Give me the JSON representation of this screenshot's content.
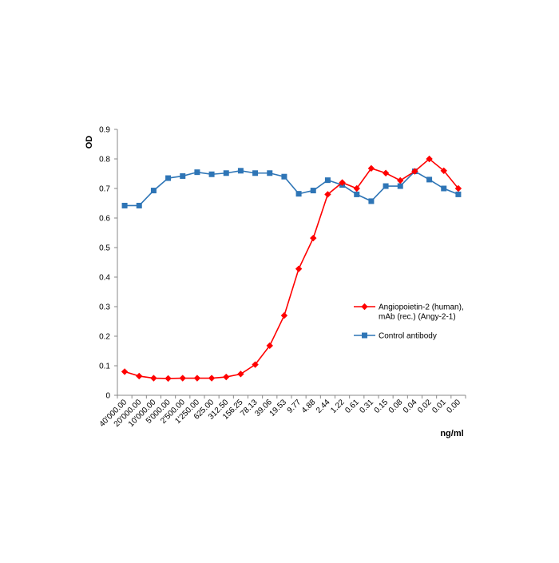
{
  "chart_data": {
    "type": "line",
    "title": "",
    "xlabel": "ng/ml",
    "ylabel": "OD",
    "ylim": [
      0,
      0.9
    ],
    "yticks": [
      "0",
      "0.1",
      "0.2",
      "0.3",
      "0.4",
      "0.5",
      "0.6",
      "0.7",
      "0.8",
      "0.9"
    ],
    "grid": false,
    "legend_position": "right",
    "categories": [
      "40'000.00",
      "20'000.00",
      "10'000.00",
      "5'000.00",
      "2'500.00",
      "1'250.00",
      "625.00",
      "312.50",
      "156.25",
      "78.13",
      "39.06",
      "19.53",
      "9.77",
      "4.88",
      "2.44",
      "1.22",
      "0.61",
      "0.31",
      "0.15",
      "0.08",
      "0.04",
      "0.02",
      "0.01",
      "0.00"
    ],
    "series": [
      {
        "name": "Angiopoietin-2 (human), mAb (rec.) (Angy-2-1)",
        "legend_lines": [
          "Angiopoietin-2 (human),",
          "mAb (rec.) (Angy-2-1)"
        ],
        "color": "#ff0000",
        "marker": "diamond",
        "values": [
          0.08,
          0.065,
          0.058,
          0.057,
          0.058,
          0.058,
          0.058,
          0.062,
          0.072,
          0.104,
          0.168,
          0.27,
          0.428,
          0.532,
          0.68,
          0.72,
          0.7,
          0.768,
          0.752,
          0.727,
          0.758,
          0.8,
          0.76,
          0.7
        ]
      },
      {
        "name": "Control antibody",
        "legend_lines": [
          "Control antibody"
        ],
        "color": "#2e75b6",
        "marker": "square",
        "values": [
          0.642,
          0.642,
          0.693,
          0.735,
          0.742,
          0.755,
          0.748,
          0.752,
          0.76,
          0.752,
          0.752,
          0.74,
          0.682,
          0.693,
          0.728,
          0.712,
          0.68,
          0.657,
          0.708,
          0.708,
          0.758,
          0.73,
          0.7,
          0.68
        ]
      }
    ]
  }
}
